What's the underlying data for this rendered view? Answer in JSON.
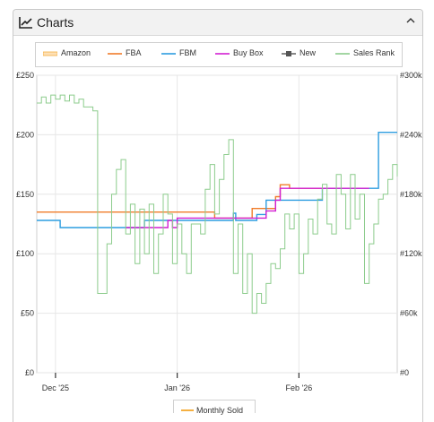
{
  "panel": {
    "title": "Charts",
    "icon": "line-chart-icon",
    "collapse_icon": "chevron-up-icon"
  },
  "legend": [
    {
      "label": "Amazon",
      "color": "#f5b041",
      "style": "area"
    },
    {
      "label": "FBA",
      "color": "#f07c2a",
      "style": "line"
    },
    {
      "label": "FBM",
      "color": "#2d9de0",
      "style": "line"
    },
    {
      "label": "Buy Box",
      "color": "#d21fd2",
      "style": "line"
    },
    {
      "label": "New",
      "color": "#555555",
      "style": "marker"
    },
    {
      "label": "Sales Rank",
      "color": "#8ccc8c",
      "style": "line"
    }
  ],
  "bottom_legend": {
    "label": "Monthly Sold",
    "color": "#f5b041"
  },
  "chart_data": {
    "type": "line",
    "x_unit": "days since 2025-12-01",
    "xlim": [
      -4,
      73
    ],
    "x_ticks": [
      {
        "x": 0,
        "label": "Dec '25"
      },
      {
        "x": 26,
        "label": "Jan '26"
      },
      {
        "x": 52,
        "label": "Feb '26"
      }
    ],
    "y_left": {
      "ylim": [
        0,
        250
      ],
      "ticks": [
        "£0",
        "£50",
        "£100",
        "£150",
        "£200",
        "£250"
      ],
      "values": [
        0,
        50,
        100,
        150,
        200,
        250
      ]
    },
    "y_right": {
      "ylim": [
        0,
        300000
      ],
      "ticks": [
        "#0",
        "#60k",
        "#120k",
        "#180k",
        "#240k",
        "#300k"
      ],
      "values": [
        0,
        60000,
        120000,
        180000,
        240000,
        300000
      ]
    },
    "series": [
      {
        "name": "FBA",
        "color": "#f07c2a",
        "axis": "left",
        "points": [
          [
            -4,
            135
          ],
          [
            34,
            135
          ],
          [
            34,
            130
          ],
          [
            42,
            130
          ],
          [
            42,
            138
          ],
          [
            47,
            138
          ],
          [
            47,
            148
          ],
          [
            48,
            148
          ],
          [
            48,
            158
          ],
          [
            50,
            158
          ],
          [
            50,
            155
          ],
          [
            60,
            155
          ]
        ]
      },
      {
        "name": "FBM",
        "color": "#2d9de0",
        "axis": "left",
        "points": [
          [
            -4,
            128
          ],
          [
            1,
            128
          ],
          [
            1,
            122
          ],
          [
            19,
            122
          ],
          [
            19,
            128
          ],
          [
            38,
            128
          ],
          [
            38,
            134
          ],
          [
            38.5,
            134
          ],
          [
            38.5,
            128
          ],
          [
            43,
            128
          ],
          [
            43,
            133
          ],
          [
            45,
            133
          ],
          [
            45,
            145
          ],
          [
            57,
            145
          ],
          [
            57,
            155
          ],
          [
            69,
            155
          ],
          [
            69,
            202
          ],
          [
            73,
            202
          ]
        ]
      },
      {
        "name": "Buy Box",
        "color": "#d21fd2",
        "axis": "left",
        "points": [
          [
            15,
            122
          ],
          [
            24,
            122
          ],
          [
            24,
            128
          ],
          [
            25,
            128
          ],
          [
            25,
            122
          ],
          [
            26,
            122
          ],
          [
            26,
            130
          ],
          [
            30,
            130
          ],
          [
            30,
            130
          ],
          [
            41,
            130
          ],
          [
            41,
            130
          ],
          [
            45,
            130
          ],
          [
            45,
            136
          ],
          [
            47,
            136
          ],
          [
            47,
            145
          ],
          [
            48,
            145
          ],
          [
            48,
            155
          ],
          [
            67,
            155
          ]
        ]
      },
      {
        "name": "Sales Rank",
        "color": "#8ccc8c",
        "axis": "right",
        "points": [
          [
            -4,
            272000
          ],
          [
            -3,
            278000
          ],
          [
            -2,
            272000
          ],
          [
            -1,
            280000
          ],
          [
            0,
            276000
          ],
          [
            1,
            280000
          ],
          [
            2,
            274000
          ],
          [
            3,
            280000
          ],
          [
            4,
            272000
          ],
          [
            5,
            276000
          ],
          [
            6,
            268000
          ],
          [
            8,
            264000
          ],
          [
            9,
            80000
          ],
          [
            10,
            80000
          ],
          [
            11,
            130000
          ],
          [
            12,
            180000
          ],
          [
            13,
            205000
          ],
          [
            14,
            215000
          ],
          [
            15,
            140000
          ],
          [
            16,
            170000
          ],
          [
            17,
            110000
          ],
          [
            18,
            165000
          ],
          [
            19,
            120000
          ],
          [
            20,
            170000
          ],
          [
            21,
            100000
          ],
          [
            22,
            140000
          ],
          [
            23,
            180000
          ],
          [
            24,
            160000
          ],
          [
            25,
            110000
          ],
          [
            26,
            150000
          ],
          [
            27,
            120000
          ],
          [
            28,
            100000
          ],
          [
            29,
            150000
          ],
          [
            30,
            150000
          ],
          [
            31,
            140000
          ],
          [
            32,
            185000
          ],
          [
            33,
            210000
          ],
          [
            34,
            160000
          ],
          [
            35,
            195000
          ],
          [
            36,
            220000
          ],
          [
            37,
            235000
          ],
          [
            38,
            100000
          ],
          [
            39,
            150000
          ],
          [
            40,
            80000
          ],
          [
            41,
            120000
          ],
          [
            42,
            60000
          ],
          [
            43,
            80000
          ],
          [
            44,
            70000
          ],
          [
            45,
            90000
          ],
          [
            46,
            110000
          ],
          [
            47,
            105000
          ],
          [
            48,
            125000
          ],
          [
            49,
            160000
          ],
          [
            50,
            145000
          ],
          [
            51,
            160000
          ],
          [
            52,
            100000
          ],
          [
            53,
            120000
          ],
          [
            54,
            155000
          ],
          [
            55,
            140000
          ],
          [
            56,
            175000
          ],
          [
            57,
            190000
          ],
          [
            58,
            150000
          ],
          [
            59,
            140000
          ],
          [
            60,
            200000
          ],
          [
            61,
            180000
          ],
          [
            62,
            145000
          ],
          [
            63,
            200000
          ],
          [
            64,
            155000
          ],
          [
            65,
            180000
          ],
          [
            66,
            90000
          ],
          [
            67,
            130000
          ],
          [
            68,
            150000
          ],
          [
            69,
            175000
          ],
          [
            70,
            180000
          ],
          [
            71,
            195000
          ],
          [
            72,
            210000
          ],
          [
            73,
            198000
          ]
        ]
      }
    ]
  }
}
